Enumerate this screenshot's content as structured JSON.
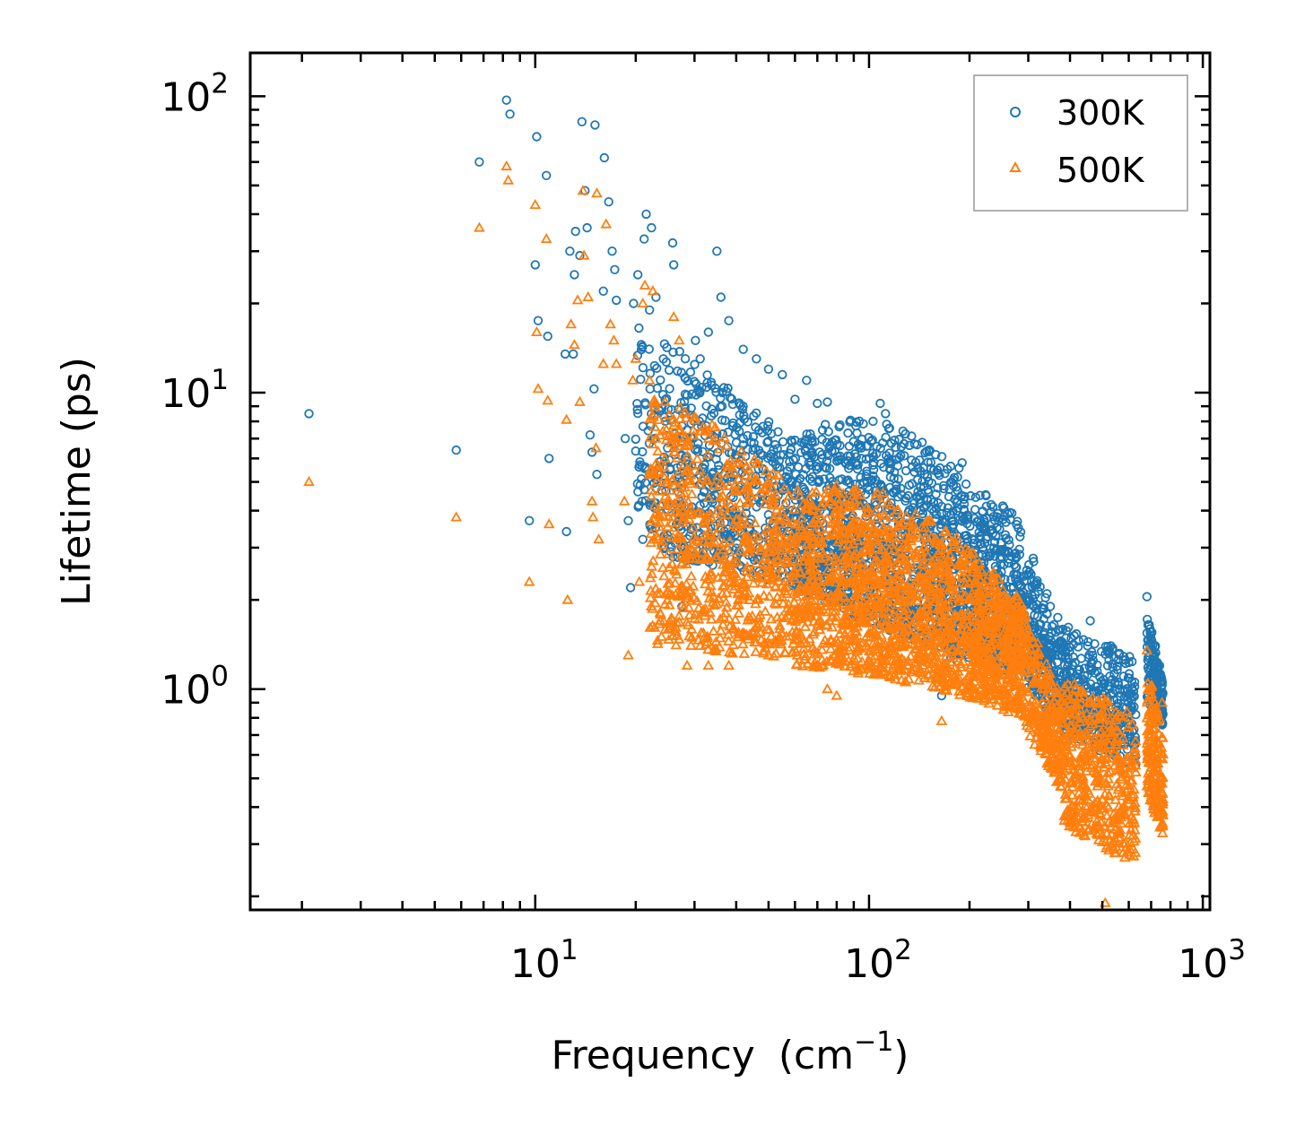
{
  "chart_data": {
    "type": "scatter",
    "title": "",
    "xlabel": "Frequency",
    "xlabel_unit": "(cm",
    "xlabel_exp": "−1",
    "xlabel_close": ")",
    "ylabel": "Lifetime (ps)",
    "xscale": "log",
    "yscale": "log",
    "xlim": [
      1.4,
      1050
    ],
    "ylim": [
      0.18,
      140
    ],
    "x_ticks": [
      {
        "value": 10,
        "base": "10",
        "exp": "1"
      },
      {
        "value": 100,
        "base": "10",
        "exp": "2"
      },
      {
        "value": 1000,
        "base": "10",
        "exp": "3"
      }
    ],
    "y_ticks": [
      {
        "value": 1,
        "base": "10",
        "exp": "0"
      },
      {
        "value": 10,
        "base": "10",
        "exp": "1"
      },
      {
        "value": 100,
        "base": "10",
        "exp": "2"
      }
    ],
    "legend_position": "top-right",
    "series": [
      {
        "name": "300K",
        "marker": "circle",
        "color": "#1f77b4",
        "points": [
          [
            2.1,
            8.5
          ],
          [
            5.8,
            6.4
          ],
          [
            6.8,
            60
          ],
          [
            8.2,
            97
          ],
          [
            8.4,
            87
          ],
          [
            9.6,
            3.7
          ],
          [
            10.0,
            27
          ],
          [
            10.1,
            73
          ],
          [
            10.2,
            17.5
          ],
          [
            10.8,
            54
          ],
          [
            10.9,
            15.5
          ],
          [
            11.0,
            6.0
          ],
          [
            12.3,
            13.5
          ],
          [
            12.4,
            3.4
          ],
          [
            12.7,
            30
          ],
          [
            13.0,
            13.5
          ],
          [
            13.1,
            25
          ],
          [
            13.2,
            35
          ],
          [
            13.6,
            29
          ],
          [
            13.8,
            82
          ],
          [
            14.1,
            48
          ],
          [
            14.3,
            36
          ],
          [
            14.6,
            7.2
          ],
          [
            14.8,
            6.3
          ],
          [
            15.0,
            10.3
          ],
          [
            15.1,
            80
          ],
          [
            15.3,
            5.3
          ],
          [
            16.0,
            22
          ],
          [
            16.1,
            62
          ],
          [
            16.6,
            44
          ],
          [
            17.0,
            30
          ],
          [
            17.3,
            26
          ],
          [
            17.5,
            20.5
          ],
          [
            18.6,
            7.0
          ],
          [
            19.0,
            3.7
          ],
          [
            19.3,
            2.2
          ],
          [
            19.7,
            20
          ],
          [
            20.3,
            25
          ],
          [
            21.0,
            3.2
          ],
          [
            21.2,
            33
          ],
          [
            21.5,
            40
          ],
          [
            22.0,
            19
          ],
          [
            22.3,
            36
          ],
          [
            23.0,
            21
          ],
          [
            23.5,
            4.0
          ],
          [
            24.2,
            13
          ],
          [
            24.9,
            3.3
          ],
          [
            25.8,
            32
          ],
          [
            26.0,
            27
          ],
          [
            27.5,
            1.9
          ],
          [
            28.5,
            9.8
          ],
          [
            30.2,
            15
          ],
          [
            31.2,
            13
          ],
          [
            33.0,
            16
          ],
          [
            35.0,
            30
          ],
          [
            36.0,
            21
          ],
          [
            38.0,
            17.5
          ],
          [
            42.0,
            14
          ],
          [
            46.0,
            13
          ],
          [
            50.0,
            12
          ],
          [
            55.0,
            11.5
          ],
          [
            60.0,
            9.5
          ],
          [
            65.0,
            11
          ],
          [
            70.0,
            9.2
          ],
          [
            75.0,
            9.3
          ],
          [
            92.0,
            7.3
          ],
          [
            108.0,
            9.2
          ],
          [
            112.0,
            8.5
          ],
          [
            150.0,
            4.7
          ],
          [
            165.0,
            0.95
          ],
          [
            190.0,
            5.8
          ],
          [
            215.0,
            4.5
          ],
          [
            260.0,
            3.9
          ],
          [
            380.0,
            1.3
          ],
          [
            460.0,
            1.7
          ],
          [
            530.0,
            1.4
          ],
          [
            680.0,
            2.05
          ],
          [
            750.0,
            1.1
          ]
        ],
        "bands": [
          {
            "x0": 20,
            "x1": 60,
            "y_top": [
              18,
              7
            ],
            "y_bot": [
              3,
              2.2
            ],
            "n": 600
          },
          {
            "x0": 60,
            "x1": 110,
            "y_top": [
              7.5,
              8.5
            ],
            "y_bot": [
              2.2,
              1.6
            ],
            "n": 550
          },
          {
            "x0": 110,
            "x1": 190,
            "y_top": [
              8.5,
              5.5
            ],
            "y_bot": [
              1.6,
              1.2
            ],
            "n": 500
          },
          {
            "x0": 190,
            "x1": 290,
            "y_top": [
              5.5,
              3.7
            ],
            "y_bot": [
              1.25,
              1.1
            ],
            "n": 450
          },
          {
            "x0": 290,
            "x1": 380,
            "y_top": [
              3.5,
              1.6
            ],
            "y_bot": [
              1.05,
              0.75
            ],
            "n": 250
          },
          {
            "x0": 380,
            "x1": 630,
            "y_top": [
              1.65,
              1.3
            ],
            "y_bot": [
              0.7,
              0.55
            ],
            "n": 380
          },
          {
            "x0": 680,
            "x1": 760,
            "y_top": [
              1.95,
              1.05
            ],
            "y_bot": [
              0.9,
              0.75
            ],
            "n": 160
          }
        ]
      },
      {
        "name": "500K",
        "marker": "triangle",
        "color": "#ff7f0e",
        "points": [
          [
            2.1,
            5.0
          ],
          [
            5.8,
            3.8
          ],
          [
            6.8,
            36
          ],
          [
            8.2,
            58
          ],
          [
            8.3,
            52
          ],
          [
            9.6,
            2.3
          ],
          [
            10.0,
            43
          ],
          [
            10.1,
            16
          ],
          [
            10.2,
            10.3
          ],
          [
            10.8,
            33
          ],
          [
            10.9,
            9.4
          ],
          [
            11.0,
            3.6
          ],
          [
            12.4,
            8.1
          ],
          [
            12.5,
            2.0
          ],
          [
            12.8,
            17
          ],
          [
            13.1,
            14.5
          ],
          [
            13.4,
            20.5
          ],
          [
            13.6,
            9.3
          ],
          [
            13.9,
            48
          ],
          [
            14.0,
            29
          ],
          [
            14.4,
            21
          ],
          [
            14.8,
            4.3
          ],
          [
            14.9,
            3.8
          ],
          [
            15.2,
            6.5
          ],
          [
            15.3,
            47
          ],
          [
            15.5,
            3.2
          ],
          [
            16.0,
            12.5
          ],
          [
            16.3,
            37
          ],
          [
            16.8,
            17
          ],
          [
            17.2,
            15
          ],
          [
            17.5,
            12.5
          ],
          [
            18.5,
            4.3
          ],
          [
            19.0,
            1.3
          ],
          [
            19.6,
            11
          ],
          [
            20.0,
            13
          ],
          [
            20.5,
            2.3
          ],
          [
            21.0,
            20
          ],
          [
            21.3,
            23
          ],
          [
            22.0,
            11
          ],
          [
            22.5,
            22
          ],
          [
            23.0,
            7.0
          ],
          [
            24.5,
            9.3
          ],
          [
            25.3,
            1.6
          ],
          [
            26.0,
            18
          ],
          [
            27.0,
            15
          ],
          [
            28.5,
            1.2
          ],
          [
            30.0,
            8.3
          ],
          [
            33.0,
            1.2
          ],
          [
            38.0,
            1.2
          ],
          [
            50.0,
            1.3
          ],
          [
            75.0,
            1.0
          ],
          [
            80.0,
            0.95
          ],
          [
            165.0,
            0.78
          ],
          [
            510.0,
            0.19
          ],
          [
            680.0,
            1.35
          ],
          [
            755.0,
            0.9
          ]
        ],
        "bands": [
          {
            "x0": 22,
            "x1": 60,
            "y_top": [
              11,
              5
            ],
            "y_bot": [
              1.4,
              1.25
            ],
            "n": 700
          },
          {
            "x0": 60,
            "x1": 110,
            "y_top": [
              5,
              4.7
            ],
            "y_bot": [
              1.2,
              1.1
            ],
            "n": 600
          },
          {
            "x0": 110,
            "x1": 190,
            "y_top": [
              4.7,
              3.2
            ],
            "y_bot": [
              1.1,
              0.95
            ],
            "n": 550
          },
          {
            "x0": 190,
            "x1": 290,
            "y_top": [
              3.2,
              2.0
            ],
            "y_bot": [
              0.95,
              0.8
            ],
            "n": 500
          },
          {
            "x0": 290,
            "x1": 380,
            "y_top": [
              1.9,
              0.95
            ],
            "y_bot": [
              0.75,
              0.45
            ],
            "n": 250
          },
          {
            "x0": 380,
            "x1": 630,
            "y_top": [
              1.1,
              0.85
            ],
            "y_bot": [
              0.35,
              0.25
            ],
            "n": 450
          },
          {
            "x0": 680,
            "x1": 760,
            "y_top": [
              1.3,
              0.75
            ],
            "y_bot": [
              0.45,
              0.32
            ],
            "n": 180
          }
        ]
      }
    ]
  }
}
